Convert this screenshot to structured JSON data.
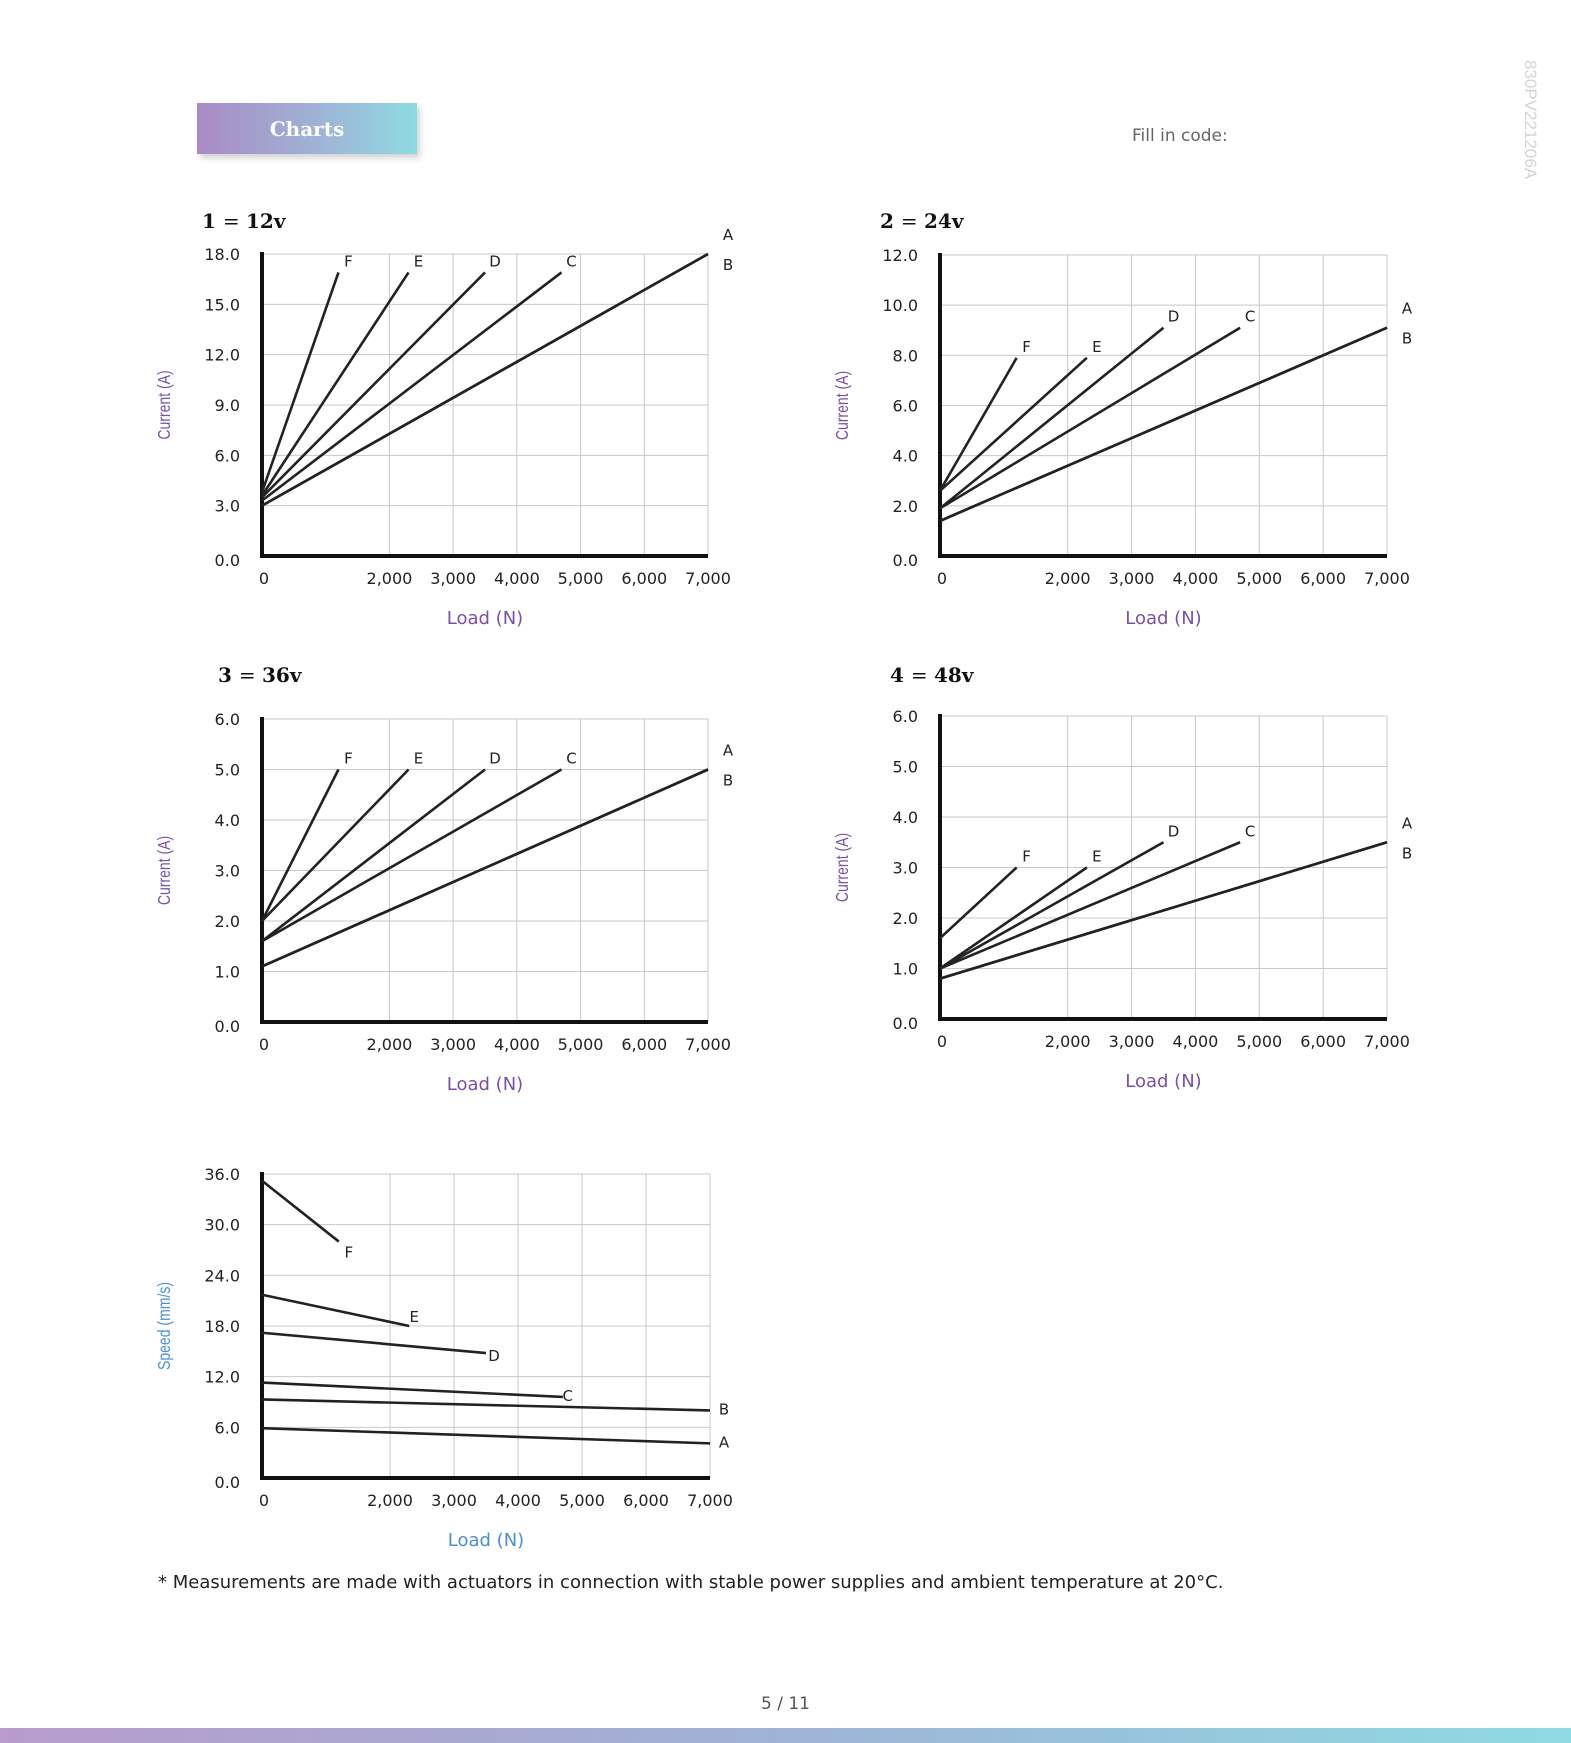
{
  "header": {
    "badge": "Charts",
    "fill_in": "Fill in code:",
    "doc_code": "830PV22120​6A"
  },
  "footnote": "* Measurements are made with actuators in connection with stable power supplies and ambient temperature at 20°C.",
  "page_number": "5 / 11",
  "colors": {
    "accent_purple": "#7b4fa8",
    "accent_blue": "#4a8fd4",
    "line": "#222222",
    "grid": "#c8c8c8"
  },
  "chart_data": [
    {
      "type": "line",
      "title_num": "1",
      "title_eq": "=",
      "title_volt": "12v",
      "xlabel": "Load (N)",
      "ylabel": "Current (A)",
      "xlim": [
        0,
        7000
      ],
      "ylim": [
        0,
        18.0
      ],
      "xticks": [
        0,
        2000,
        3000,
        4000,
        5000,
        6000,
        7000
      ],
      "xtick_labels": [
        "0",
        "2,000",
        "3,000",
        "4,000",
        "5,000",
        "6,000",
        "7,000"
      ],
      "yticks": [
        0,
        3,
        6,
        9,
        12,
        15,
        18
      ],
      "ytick_labels": [
        "0.0",
        "3.0",
        "6.0",
        "9.0",
        "12.0",
        "15.0",
        "18.0"
      ],
      "grid": true,
      "series": [
        {
          "name": "F",
          "points": [
            [
              0,
              3.8
            ],
            [
              1200,
              16.9
            ]
          ]
        },
        {
          "name": "E",
          "points": [
            [
              0,
              3.6
            ],
            [
              2300,
              16.9
            ]
          ]
        },
        {
          "name": "D",
          "points": [
            [
              0,
              3.5
            ],
            [
              3500,
              16.9
            ]
          ]
        },
        {
          "name": "C",
          "points": [
            [
              0,
              3.3
            ],
            [
              4700,
              16.9
            ]
          ]
        },
        {
          "name": "A",
          "points": [
            [
              0,
              3.0
            ],
            [
              7000,
              18.0
            ]
          ]
        },
        {
          "name": "B",
          "points": [
            [
              0,
              3.0
            ],
            [
              7000,
              18.0
            ]
          ]
        }
      ]
    },
    {
      "type": "line",
      "title_num": "2",
      "title_eq": "=",
      "title_volt": "24v",
      "xlabel": "Load (N)",
      "ylabel": "Current (A)",
      "xlim": [
        0,
        7000
      ],
      "ylim": [
        0,
        12.0
      ],
      "xticks": [
        0,
        2000,
        3000,
        4000,
        5000,
        6000,
        7000
      ],
      "xtick_labels": [
        "0",
        "2,000",
        "3,000",
        "4,000",
        "5,000",
        "6,000",
        "7,000"
      ],
      "yticks": [
        0,
        2,
        4,
        6,
        8,
        10,
        12
      ],
      "ytick_labels": [
        "0.0",
        "2.0",
        "4.0",
        "6.0",
        "8.0",
        "10.0",
        "12.0"
      ],
      "grid": true,
      "series": [
        {
          "name": "F",
          "points": [
            [
              0,
              2.6
            ],
            [
              1200,
              7.9
            ]
          ]
        },
        {
          "name": "E",
          "points": [
            [
              0,
              2.6
            ],
            [
              2300,
              7.9
            ]
          ]
        },
        {
          "name": "D",
          "points": [
            [
              0,
              1.9
            ],
            [
              3500,
              9.1
            ]
          ]
        },
        {
          "name": "C",
          "points": [
            [
              0,
              1.9
            ],
            [
              4700,
              9.1
            ]
          ]
        },
        {
          "name": "A",
          "points": [
            [
              0,
              1.4
            ],
            [
              7000,
              9.1
            ]
          ]
        },
        {
          "name": "B",
          "points": [
            [
              0,
              1.4
            ],
            [
              7000,
              9.1
            ]
          ]
        }
      ]
    },
    {
      "type": "line",
      "title_num": "3",
      "title_eq": "=",
      "title_volt": "36v",
      "xlabel": "Load (N)",
      "ylabel": "Current (A)",
      "xlim": [
        0,
        7000
      ],
      "ylim": [
        0,
        6.0
      ],
      "xticks": [
        0,
        2000,
        3000,
        4000,
        5000,
        6000,
        7000
      ],
      "xtick_labels": [
        "0",
        "2,000",
        "3,000",
        "4,000",
        "5,000",
        "6,000",
        "7,000"
      ],
      "yticks": [
        0,
        1,
        2,
        3,
        4,
        5,
        6
      ],
      "ytick_labels": [
        "0.0",
        "1.0",
        "2.0",
        "3.0",
        "4.0",
        "5.0",
        "6.0"
      ],
      "grid": true,
      "series": [
        {
          "name": "F",
          "points": [
            [
              0,
              2.0
            ],
            [
              1200,
              5.0
            ]
          ]
        },
        {
          "name": "E",
          "points": [
            [
              0,
              2.0
            ],
            [
              2300,
              5.0
            ]
          ]
        },
        {
          "name": "D",
          "points": [
            [
              0,
              1.6
            ],
            [
              3500,
              5.0
            ]
          ]
        },
        {
          "name": "C",
          "points": [
            [
              0,
              1.6
            ],
            [
              4700,
              5.0
            ]
          ]
        },
        {
          "name": "A",
          "points": [
            [
              0,
              1.1
            ],
            [
              7000,
              5.0
            ]
          ]
        },
        {
          "name": "B",
          "points": [
            [
              0,
              1.1
            ],
            [
              7000,
              5.0
            ]
          ]
        }
      ]
    },
    {
      "type": "line",
      "title_num": "4",
      "title_eq": "=",
      "title_volt": "48v",
      "xlabel": "Load (N)",
      "ylabel": "Current (A)",
      "xlim": [
        0,
        7000
      ],
      "ylim": [
        0,
        6.0
      ],
      "xticks": [
        0,
        2000,
        3000,
        4000,
        5000,
        6000,
        7000
      ],
      "xtick_labels": [
        "0",
        "2,000",
        "3,000",
        "4,000",
        "5,000",
        "6,000",
        "7,000"
      ],
      "yticks": [
        0,
        1,
        2,
        3,
        4,
        5,
        6
      ],
      "ytick_labels": [
        "0.0",
        "1.0",
        "2.0",
        "3.0",
        "4.0",
        "5.0",
        "6.0"
      ],
      "grid": true,
      "series": [
        {
          "name": "F",
          "points": [
            [
              0,
              1.6
            ],
            [
              1200,
              3.0
            ]
          ]
        },
        {
          "name": "E",
          "points": [
            [
              0,
              1.0
            ],
            [
              2300,
              3.0
            ]
          ]
        },
        {
          "name": "D",
          "points": [
            [
              0,
              1.0
            ],
            [
              3500,
              3.5
            ]
          ]
        },
        {
          "name": "C",
          "points": [
            [
              0,
              1.0
            ],
            [
              4700,
              3.5
            ]
          ]
        },
        {
          "name": "A",
          "points": [
            [
              0,
              0.8
            ],
            [
              7000,
              3.5
            ]
          ]
        },
        {
          "name": "B",
          "points": [
            [
              0,
              0.8
            ],
            [
              7000,
              3.5
            ]
          ]
        }
      ]
    },
    {
      "type": "line",
      "title_num": "",
      "title_eq": "",
      "title_volt": "",
      "xlabel": "Load (N)",
      "ylabel": "Speed (mm/s)",
      "xlim": [
        0,
        7000
      ],
      "ylim": [
        0,
        36.0
      ],
      "xticks": [
        0,
        2000,
        3000,
        4000,
        5000,
        6000,
        7000
      ],
      "xtick_labels": [
        "0",
        "2,000",
        "3,000",
        "4,000",
        "5,000",
        "6,000",
        "7,000"
      ],
      "yticks": [
        0,
        6,
        12,
        18,
        24,
        30,
        36
      ],
      "ytick_labels": [
        "0.0",
        "6.0",
        "12.0",
        "18.0",
        "24.0",
        "30.0",
        "36.0"
      ],
      "grid": true,
      "series": [
        {
          "name": "F",
          "points": [
            [
              0,
              35.2
            ],
            [
              1200,
              28.0
            ]
          ]
        },
        {
          "name": "E",
          "points": [
            [
              0,
              21.7
            ],
            [
              2300,
              18.0
            ]
          ]
        },
        {
          "name": "D",
          "points": [
            [
              0,
              17.2
            ],
            [
              3500,
              14.8
            ]
          ]
        },
        {
          "name": "C",
          "points": [
            [
              0,
              11.3
            ],
            [
              4700,
              9.6
            ]
          ]
        },
        {
          "name": "B",
          "points": [
            [
              0,
              9.3
            ],
            [
              7000,
              8.0
            ]
          ]
        },
        {
          "name": "A",
          "points": [
            [
              0,
              5.9
            ],
            [
              7000,
              4.1
            ]
          ]
        }
      ]
    }
  ]
}
